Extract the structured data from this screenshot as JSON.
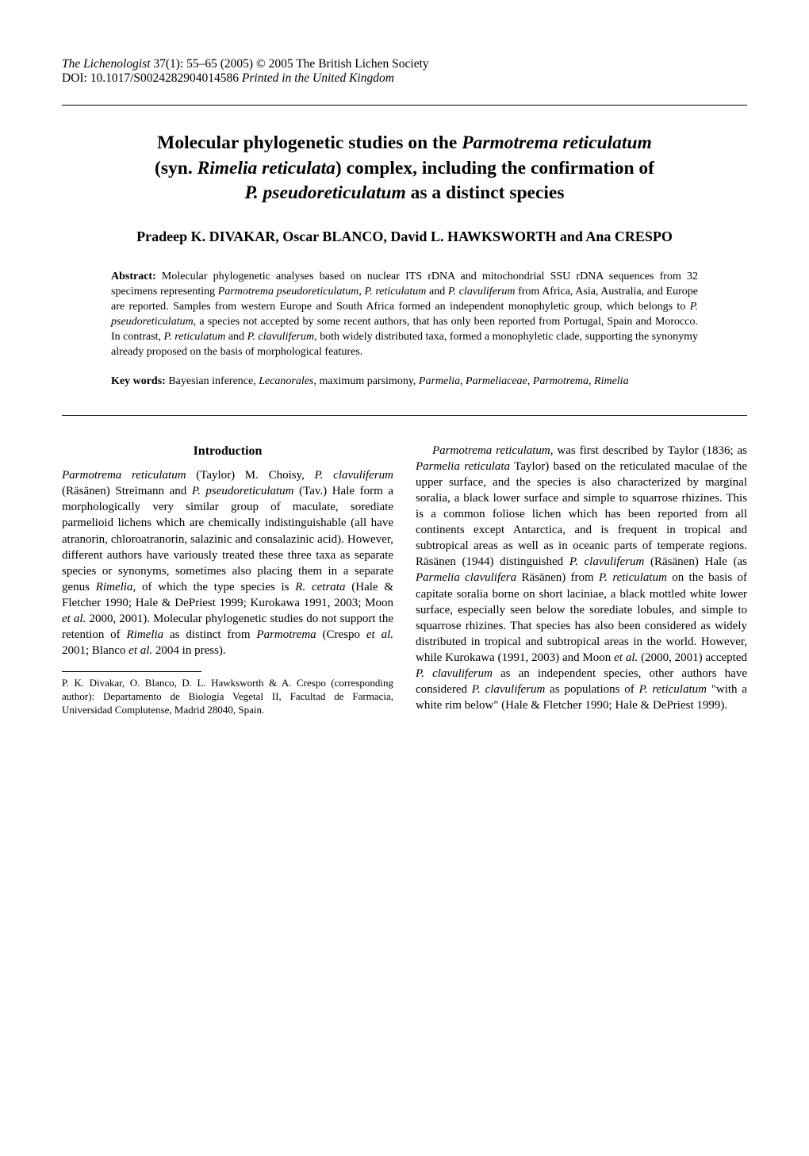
{
  "header": {
    "journal_italic": "The Lichenologist",
    "issue": " 37(1): 55–65 (2005)    © 2005 The British Lichen Society",
    "doi": "DOI: 10.1017/S0024282904014586   ",
    "doi_suffix_italic": "Printed in the United Kingdom"
  },
  "title": {
    "line1_pre": "Molecular phylogenetic studies on the ",
    "line1_sci": "Parmotrema reticulatum",
    "line2_pre": "(syn. ",
    "line2_sci": "Rimelia reticulata",
    "line2_post": ") complex, including the confirmation of",
    "line3_sci": "P. pseudoreticulatum",
    "line3_post": " as a distinct species"
  },
  "authors": "Pradeep K. DIVAKAR, Oscar BLANCO, David L. HAWKSWORTH and Ana CRESPO",
  "abstract": {
    "label": "Abstract: ",
    "t1": "Molecular phylogenetic analyses based on nuclear ITS rDNA and mitochondrial SSU rDNA sequences from 32 specimens representing ",
    "s1": "Parmotrema pseudoreticulatum",
    "t2": ", ",
    "s2": "P. reticulatum",
    "t3": " and ",
    "s3": "P. clavuliferum",
    "t4": " from Africa, Asia, Australia, and Europe are reported. Samples from western Europe and South Africa formed an independent monophyletic group, which belongs to ",
    "s4": "P. pseudoreticulatum",
    "t5": ", a species not accepted by some recent authors, that has only been reported from Portugal, Spain and Morocco. In contrast, ",
    "s5": "P. reticulatum",
    "t6": " and ",
    "s6": "P. clavuliferum",
    "t7": ", both widely distributed taxa, formed a monophyletic clade, supporting the synonymy already proposed on the basis of morphological features."
  },
  "keywords": {
    "label": "Key words: ",
    "t1": "Bayesian inference, ",
    "s1": "Lecanorales",
    "t2": ", maximum parsimony, ",
    "s2": "Parmelia",
    "t3": ", ",
    "s3": "Parmeliaceae",
    "t4": ", ",
    "s4": "Parmotrema",
    "t5": ", ",
    "s5": "Rimelia"
  },
  "intro_heading": "Introduction",
  "col1": {
    "p1_s1": "Parmotrema reticulatum",
    "p1_t1": " (Taylor) M. Choisy, ",
    "p1_s2": "P. clavuliferum",
    "p1_t2": " (Räsänen) Streimann and ",
    "p1_s3": "P. pseudoreticulatum",
    "p1_t3": " (Tav.) Hale form a morphologically very similar group of maculate, sorediate parmelioid lichens which are chemically indistinguishable (all have atranorin, chloroatranorin, salazinic and consalazinic acid). However, different authors have variously treated these three taxa as separate species or synonyms, sometimes also placing them in a separate genus ",
    "p1_s4": "Rimelia",
    "p1_t4": ", of which the type species is ",
    "p1_s5": "R. cetrata",
    "p1_t5": " (Hale & Fletcher 1990; Hale & DePriest 1999; Kurokawa 1991, 2003; Moon ",
    "p1_s6": "et al.",
    "p1_t6": " 2000, 2001). Molecular phylogenetic studies do not support the retention of ",
    "p1_s7": "Rimelia",
    "p1_t7": " as distinct from ",
    "p1_s8": "Parmotrema",
    "p1_t8": " (Crespo ",
    "p1_s9": "et al.",
    "p1_t9": " 2001; Blanco ",
    "p1_s10": "et al.",
    "p1_t10": " 2004 in press)."
  },
  "footnote": "P. K. Divakar, O. Blanco, D. L. Hawksworth & A. Crespo (corresponding author): Departamento de Biología Vegetal II, Facultad de Farmacia, Universidad Complutense, Madrid 28040, Spain.",
  "col2": {
    "p1_t0": "",
    "p1_s1": "Parmotrema reticulatum",
    "p1_t1": ", was first described by Taylor (1836; as ",
    "p1_s2": "Parmelia reticulata",
    "p1_t2": " Taylor) based on the reticulated maculae of the upper surface, and the species is also characterized by marginal soralia, a black lower surface and simple to squarrose rhizines. This is a common foliose lichen which has been reported from all continents except Antarctica, and is frequent in tropical and subtropical areas as well as in oceanic parts of temperate regions. Räsänen (1944) distinguished ",
    "p1_s3": "P. clavuliferum",
    "p1_t3": " (Räsänen) Hale (as ",
    "p1_s4": "Parmelia clavulifera",
    "p1_t4": " Räsänen) from ",
    "p1_s5": "P. reticulatum",
    "p1_t5": " on the basis of capitate soralia borne on short laciniae, a black mottled white lower surface, especially seen below the sorediate lobules, and simple to squarrose rhizines. That species has also been considered as widely distributed in tropical and subtropical areas in the world. However, while Kurokawa (1991, 2003) and Moon ",
    "p1_s6": "et al.",
    "p1_t6": " (2000, 2001) accepted ",
    "p1_s7": "P. clavuliferum",
    "p1_t7": " as an independent species, other authors have considered ",
    "p1_s8": "P. clavuliferum",
    "p1_t8": " as populations of ",
    "p1_s9": "P. reticulatum",
    "p1_t9": " \"with a white rim below\" (Hale & Fletcher 1990; Hale & DePriest 1999)."
  }
}
